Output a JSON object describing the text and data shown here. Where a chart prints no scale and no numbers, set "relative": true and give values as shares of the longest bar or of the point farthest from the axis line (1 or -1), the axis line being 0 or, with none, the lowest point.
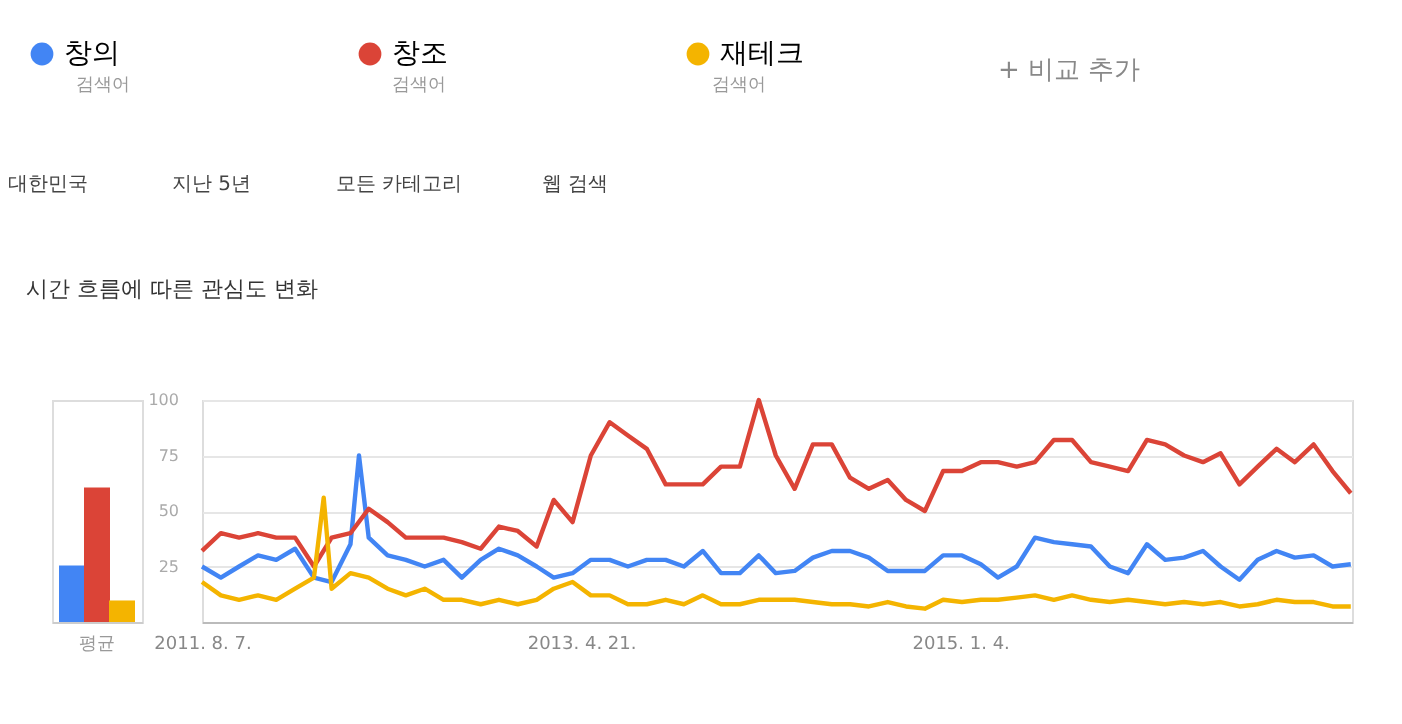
{
  "chart_data": [
    {
      "type": "bar",
      "relative": true,
      "title": "시간 흐름에 따른 관심도 변화",
      "legend": "top",
      "annotations": [
        "검색어",
        "검색어",
        "검색어",
        "+ 비교 추가",
        "대한민국",
        "지난 5년",
        "모든 카테고리",
        "웹 검색"
      ],
      "categories": [
        "평균"
      ],
      "series": [
        {
          "name": "창의",
          "color": "#4285f4",
          "values": [
            0.42
          ]
        },
        {
          "name": "창조",
          "color": "#db4437",
          "values": [
            1
          ]
        },
        {
          "name": "재테크",
          "color": "#f4b400",
          "values": [
            0.16
          ]
        }
      ]
    },
    {
      "type": "line",
      "grid": "y",
      "xlim": [
        "2011-08-07",
        "2016-10-09"
      ],
      "ylim": [
        0,
        100
      ],
      "yticks": [
        25,
        50,
        75,
        100
      ],
      "xticks": [
        {
          "value": "2011-08-07",
          "label": "2011. 8. 7."
        },
        {
          "value": "2013-04-21",
          "label": "2013. 4. 21."
        },
        {
          "value": "2015-01-04",
          "label": "2015. 1. 4."
        }
      ],
      "x": [
        "2011-08-07",
        "2011-09-07",
        "2011-10-07",
        "2011-11-07",
        "2011-12-07",
        "2012-01-07",
        "2012-02-07",
        "2012-03-07",
        "2012-04-07",
        "2012-05-07",
        "2012-06-07",
        "2012-07-07",
        "2012-08-07",
        "2012-09-07",
        "2012-10-07",
        "2012-11-07",
        "2012-12-07",
        "2013-01-07",
        "2013-02-07",
        "2013-03-07",
        "2013-04-07",
        "2013-05-07",
        "2013-06-07",
        "2013-07-07",
        "2013-08-07",
        "2013-09-07",
        "2013-10-07",
        "2013-11-07",
        "2013-12-07",
        "2014-01-07",
        "2014-02-07",
        "2014-03-07",
        "2014-04-07",
        "2014-05-07",
        "2014-06-07",
        "2014-07-07",
        "2014-08-07",
        "2014-09-07",
        "2014-10-07",
        "2014-11-07",
        "2014-12-07",
        "2015-01-07",
        "2015-02-07",
        "2015-03-07",
        "2015-04-07",
        "2015-05-07",
        "2015-06-07",
        "2015-07-07",
        "2015-08-07",
        "2015-09-07",
        "2015-10-07",
        "2015-11-07",
        "2015-12-07",
        "2016-01-07",
        "2016-02-07",
        "2016-03-07",
        "2016-04-07",
        "2016-05-07",
        "2016-06-07",
        "2016-07-07",
        "2016-08-07",
        "2016-09-07",
        "2016-10-07"
      ],
      "series": [
        {
          "name": "창의",
          "color": "#4285f4",
          "x": [
            "2011-08-07",
            "2011-09-07",
            "2011-10-07",
            "2011-11-07",
            "2011-12-07",
            "2012-01-07",
            "2012-02-07",
            "2012-03-07",
            "2012-04-07",
            "2012-04-21",
            "2012-05-07",
            "2012-06-07",
            "2012-07-07",
            "2012-08-07",
            "2012-09-07",
            "2012-10-07",
            "2012-11-07",
            "2012-12-07",
            "2013-01-07",
            "2013-02-07",
            "2013-03-07",
            "2013-04-07",
            "2013-05-07",
            "2013-06-07",
            "2013-07-07",
            "2013-08-07",
            "2013-09-07",
            "2013-10-07",
            "2013-11-07",
            "2013-12-07",
            "2014-01-07",
            "2014-02-07",
            "2014-03-07",
            "2014-04-07",
            "2014-05-07",
            "2014-06-07",
            "2014-07-07",
            "2014-08-07",
            "2014-09-07",
            "2014-10-07",
            "2014-11-07",
            "2014-12-07",
            "2015-01-07",
            "2015-02-07",
            "2015-03-07",
            "2015-04-07",
            "2015-05-07",
            "2015-06-07",
            "2015-07-07",
            "2015-08-07",
            "2015-09-07",
            "2015-10-07",
            "2015-11-07",
            "2015-12-07",
            "2016-01-07",
            "2016-02-07",
            "2016-03-07",
            "2016-04-07",
            "2016-05-07",
            "2016-06-07",
            "2016-07-07",
            "2016-08-07",
            "2016-09-07",
            "2016-10-07"
          ],
          "values": [
            25,
            20,
            25,
            30,
            28,
            33,
            20,
            18,
            35,
            75,
            38,
            30,
            28,
            25,
            28,
            20,
            28,
            33,
            30,
            25,
            20,
            22,
            28,
            28,
            25,
            28,
            28,
            25,
            32,
            22,
            22,
            30,
            22,
            23,
            29,
            32,
            32,
            29,
            23,
            23,
            23,
            30,
            30,
            26,
            20,
            25,
            38,
            36,
            35,
            34,
            25,
            22,
            35,
            28,
            29,
            32,
            25,
            19,
            28,
            32,
            29,
            30,
            25,
            26
          ]
        },
        {
          "name": "창조",
          "color": "#db4437",
          "values": [
            32,
            40,
            38,
            40,
            38,
            38,
            25,
            38,
            40,
            51,
            45,
            38,
            38,
            38,
            36,
            33,
            43,
            41,
            34,
            55,
            45,
            75,
            90,
            84,
            78,
            62,
            62,
            62,
            70,
            70,
            100,
            75,
            60,
            80,
            80,
            65,
            60,
            64,
            55,
            50,
            68,
            68,
            72,
            72,
            70,
            72,
            82,
            82,
            72,
            70,
            68,
            82,
            80,
            75,
            72,
            76,
            62,
            70,
            78,
            72,
            80,
            68,
            58
          ]
        },
        {
          "name": "재테크",
          "color": "#f4b400",
          "x": [
            "2011-08-07",
            "2011-09-07",
            "2011-10-07",
            "2011-11-07",
            "2011-12-07",
            "2012-01-07",
            "2012-02-07",
            "2012-02-23",
            "2012-03-07",
            "2012-04-07",
            "2012-05-07",
            "2012-06-07",
            "2012-07-07",
            "2012-08-07",
            "2012-09-07",
            "2012-10-07",
            "2012-11-07",
            "2012-12-07",
            "2013-01-07",
            "2013-02-07",
            "2013-03-07",
            "2013-04-07",
            "2013-05-07",
            "2013-06-07",
            "2013-07-07",
            "2013-08-07",
            "2013-09-07",
            "2013-10-07",
            "2013-11-07",
            "2013-12-07",
            "2014-01-07",
            "2014-02-07",
            "2014-03-07",
            "2014-04-07",
            "2014-05-07",
            "2014-06-07",
            "2014-07-07",
            "2014-08-07",
            "2014-09-07",
            "2014-10-07",
            "2014-11-07",
            "2014-12-07",
            "2015-01-07",
            "2015-02-07",
            "2015-03-07",
            "2015-04-07",
            "2015-05-07",
            "2015-06-07",
            "2015-07-07",
            "2015-08-07",
            "2015-09-07",
            "2015-10-07",
            "2015-11-07",
            "2015-12-07",
            "2016-01-07",
            "2016-02-07",
            "2016-03-07",
            "2016-04-07",
            "2016-05-07",
            "2016-06-07",
            "2016-07-07",
            "2016-08-07",
            "2016-09-07",
            "2016-10-07"
          ],
          "values": [
            18,
            12,
            10,
            12,
            10,
            15,
            20,
            56,
            15,
            22,
            20,
            15,
            12,
            15,
            10,
            10,
            8,
            10,
            8,
            10,
            15,
            18,
            12,
            12,
            8,
            8,
            10,
            8,
            12,
            8,
            8,
            10,
            10,
            10,
            9,
            8,
            8,
            7,
            9,
            7,
            6,
            10,
            9,
            10,
            10,
            11,
            12,
            10,
            12,
            10,
            9,
            10,
            9,
            8,
            9,
            8,
            9,
            7,
            8,
            10,
            9,
            9,
            7,
            7
          ]
        }
      ]
    }
  ]
}
